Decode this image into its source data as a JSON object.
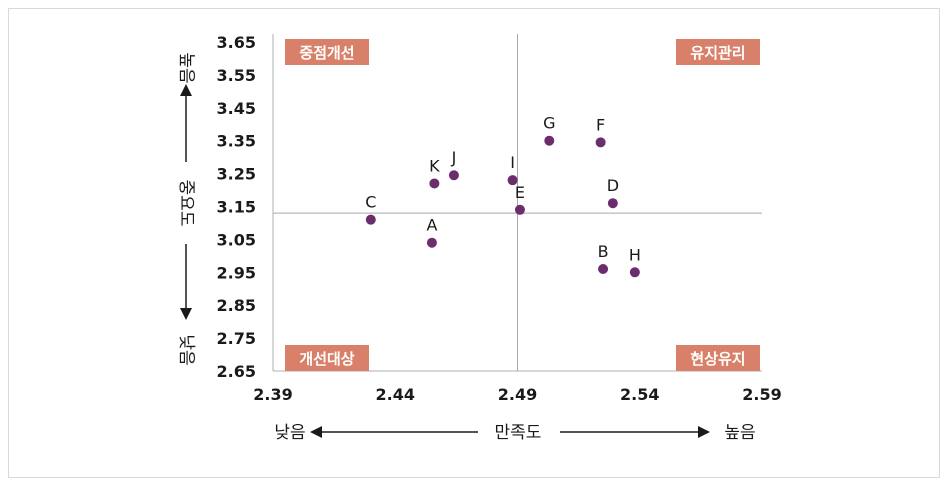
{
  "chart_data": {
    "type": "scatter",
    "x_range": [
      2.39,
      2.59
    ],
    "y_range": [
      2.65,
      3.65
    ],
    "x_ticks": [
      "2.39",
      "2.44",
      "2.49",
      "2.54",
      "2.59"
    ],
    "y_ticks": [
      "3.65",
      "3.55",
      "3.45",
      "3.35",
      "3.25",
      "3.15",
      "3.05",
      "2.95",
      "2.85",
      "2.75",
      "2.65"
    ],
    "x_divider": 2.49,
    "y_divider": 3.13,
    "points": [
      {
        "label": "A",
        "x": 2.455,
        "y": 3.04
      },
      {
        "label": "B",
        "x": 2.525,
        "y": 2.96
      },
      {
        "label": "C",
        "x": 2.43,
        "y": 3.11
      },
      {
        "label": "D",
        "x": 2.529,
        "y": 3.16
      },
      {
        "label": "E",
        "x": 2.491,
        "y": 3.14
      },
      {
        "label": "F",
        "x": 2.524,
        "y": 3.345
      },
      {
        "label": "G",
        "x": 2.503,
        "y": 3.35
      },
      {
        "label": "H",
        "x": 2.538,
        "y": 2.95
      },
      {
        "label": "I",
        "x": 2.488,
        "y": 3.23
      },
      {
        "label": "J",
        "x": 2.464,
        "y": 3.245
      },
      {
        "label": "K",
        "x": 2.456,
        "y": 3.22
      }
    ],
    "quadrants": {
      "top_left": "중점개선",
      "top_right": "유지관리",
      "bottom_left": "개선대상",
      "bottom_right": "현상유지"
    },
    "x_axis": {
      "label": "만족도",
      "low": "낮음",
      "high": "높음"
    },
    "y_axis": {
      "label": "중요도",
      "low": "낮음",
      "high": "높음"
    },
    "colors": {
      "point": "#6b2d6e",
      "quadrant_label_bg": "#d9806a",
      "line": "#b0b0b0",
      "text": "#1a1a1a"
    }
  }
}
